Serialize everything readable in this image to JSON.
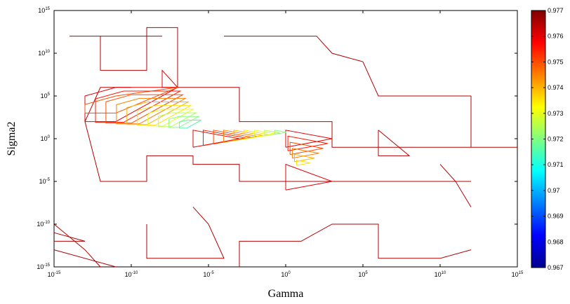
{
  "chart_data": {
    "type": "contour",
    "title": "",
    "xlabel": "Gamma",
    "ylabel": "Sigma2",
    "x_scale": "log",
    "y_scale": "log",
    "xlim": [
      1e-15,
      1000000000000000.0
    ],
    "ylim": [
      1e-15,
      1000000000000000.0
    ],
    "x_ticks": [
      {
        "base": "10",
        "exp": "-15",
        "value": 1e-15
      },
      {
        "base": "10",
        "exp": "-10",
        "value": 1e-10
      },
      {
        "base": "10",
        "exp": "-5",
        "value": 1e-05
      },
      {
        "base": "10",
        "exp": "0",
        "value": 1
      },
      {
        "base": "10",
        "exp": "5",
        "value": 100000.0
      },
      {
        "base": "10",
        "exp": "10",
        "value": 10000000000.0
      },
      {
        "base": "10",
        "exp": "15",
        "value": 1000000000000000.0
      }
    ],
    "y_ticks": [
      {
        "base": "10",
        "exp": "-15",
        "value": 1e-15
      },
      {
        "base": "10",
        "exp": "-10",
        "value": 1e-10
      },
      {
        "base": "10",
        "exp": "-5",
        "value": 1e-05
      },
      {
        "base": "10",
        "exp": "0",
        "value": 1
      },
      {
        "base": "10",
        "exp": "5",
        "value": 100000.0
      },
      {
        "base": "10",
        "exp": "10",
        "value": 10000000000.0
      },
      {
        "base": "10",
        "exp": "15",
        "value": 1000000000000000.0
      }
    ],
    "grid": false,
    "colormap": "jet",
    "colorbar": {
      "position": "right",
      "min": 0.967,
      "max": 0.977,
      "tick_labels": [
        "0.967",
        "0.968",
        "0.969",
        "0.97",
        "0.971",
        "0.972",
        "0.973",
        "0.974",
        "0.975",
        "0.976",
        "0.977"
      ]
    },
    "contours": [
      {
        "level": 0.9765,
        "points": [
          [
            1e-14,
            1000000000000.0
          ],
          [
            1e-12,
            1000000000000.0
          ],
          [
            1e-12,
            100000000.0
          ],
          [
            1e-09,
            100000000.0
          ],
          [
            1e-09,
            10000000000000.0
          ],
          [
            1e-07,
            10000000000000.0
          ],
          [
            1e-07,
            1000000.0
          ],
          [
            0.001,
            1000000.0
          ],
          [
            0.001,
            100.0
          ],
          [
            1000.0,
            100.0
          ],
          [
            1000.0,
            0.1
          ],
          [
            1000000000000000.0,
            0.1
          ]
        ]
      },
      {
        "level": 0.9765,
        "points": [
          [
            1e-12,
            1000000000000.0
          ],
          [
            1e-08,
            1000000000000.0
          ]
        ]
      },
      {
        "level": 0.9765,
        "points": [
          [
            0.0001,
            1000000000000.0
          ],
          [
            100.0,
            1000000000000.0
          ],
          [
            1000.0,
            10000000000.0
          ],
          [
            100000.0,
            1000000000.0
          ],
          [
            1000000.0,
            100000.0
          ],
          [
            1000000000000.0,
            100000.0
          ]
        ]
      },
      {
        "level": 0.9765,
        "points": [
          [
            1e-10,
            1000000.0
          ],
          [
            1e-12,
            1000000.0
          ],
          [
            1e-13,
            100.0
          ],
          [
            1e-12,
            1e-05
          ],
          [
            1e-09,
            1e-05
          ],
          [
            1e-09,
            0.01
          ],
          [
            1e-06,
            0.01
          ],
          [
            1e-06,
            0.001
          ],
          [
            0.001,
            0.001
          ],
          [
            0.001,
            1e-05
          ],
          [
            10.0,
            1e-05
          ],
          [
            1000000.0,
            1e-05
          ],
          [
            1000000000000.0,
            1e-05
          ]
        ]
      },
      {
        "level": 0.9765,
        "points": [
          [
            1e-09,
            1e-10
          ],
          [
            1e-09,
            1e-14
          ],
          [
            0.0001,
            1e-14
          ],
          [
            1e-05,
            1e-10
          ],
          [
            1e-06,
            1e-08
          ]
        ]
      },
      {
        "level": 0.9765,
        "points": [
          [
            0.001,
            1e-15
          ],
          [
            0.001,
            1e-12
          ],
          [
            10.0,
            1e-12
          ],
          [
            1000.0,
            1e-10
          ],
          [
            1000000.0,
            1e-10
          ],
          [
            1000000.0,
            1e-14
          ],
          [
            10000000000.0,
            1e-14
          ],
          [
            1000000000000.0,
            1e-13
          ]
        ]
      },
      {
        "level": 0.9765,
        "points": [
          [
            1000000000000.0,
            0.1
          ],
          [
            1000000000000.0,
            100000.0
          ]
        ]
      },
      {
        "level": 0.9765,
        "points": [
          [
            1000000.0,
            10.0
          ],
          [
            1000000.0,
            0.01
          ],
          [
            100000000.0,
            0.01
          ],
          [
            1000000.0,
            10.0
          ]
        ]
      },
      {
        "level": 0.9765,
        "points": [
          [
            10000000000.0,
            0.001
          ],
          [
            100000000000.0,
            1e-05
          ],
          [
            1000000000000.0,
            1e-08
          ]
        ]
      },
      {
        "level": 0.9765,
        "points": [
          [
            1e-15,
            1e-10
          ],
          [
            1e-13,
            1e-13
          ],
          [
            1e-12,
            1e-15
          ]
        ]
      },
      {
        "level": 0.9765,
        "points": [
          [
            1e-15,
            1e-13
          ],
          [
            1e-11,
            1e-15
          ]
        ]
      },
      {
        "level": 0.9765,
        "points": [
          [
            1e-15,
            1e-11
          ],
          [
            1e-13,
            1e-12
          ]
        ]
      },
      {
        "level": 0.9765,
        "points": [
          [
            1e-15,
            1e-12
          ],
          [
            1e-13,
            1e-12
          ]
        ]
      },
      {
        "level": 0.976,
        "points": [
          [
            1e-08,
            1000000.0
          ],
          [
            1e-07,
            1000000.0
          ],
          [
            1e-08,
            100000000.0
          ],
          [
            1e-08,
            1000000.0
          ]
        ]
      },
      {
        "level": 0.976,
        "points": [
          [
            1e-11,
            100.0
          ],
          [
            1e-13,
            100.0
          ],
          [
            1e-13,
            100000.0
          ],
          [
            1e-11,
            1000000.0
          ],
          [
            1e-07,
            1000000.0
          ],
          [
            1e-11,
            100.0
          ]
        ]
      },
      {
        "level": 0.975,
        "points": [
          [
            1e-11,
            1000.0
          ],
          [
            1e-13,
            1000.0
          ],
          [
            1e-13,
            10000.0
          ],
          [
            1e-11,
            100000.0
          ],
          [
            1e-07,
            1000000.0
          ],
          [
            1e-11,
            1000.0
          ]
        ]
      },
      {
        "level": 0.976,
        "points": [
          [
            1e-06,
            0.1
          ],
          [
            1e-06,
            10.0
          ],
          [
            0.001,
            1.0
          ],
          [
            1e-06,
            0.1
          ]
        ]
      },
      {
        "level": 0.976,
        "points": [
          [
            1.0,
            0.1
          ],
          [
            1.0,
            10.0
          ],
          [
            1000.0,
            1.0
          ],
          [
            1.0,
            0.1
          ]
        ]
      },
      {
        "level": 0.976,
        "points": [
          [
            1.0,
            1e-06
          ],
          [
            1.0,
            0.001
          ],
          [
            1000.0,
            1e-05
          ],
          [
            1.0,
            1e-06
          ]
        ]
      }
    ],
    "peaks": [
      {
        "x": 3.2e-09,
        "y": 32000000.0,
        "max": 0.977
      },
      {
        "x": 1e-05,
        "y": 10.0,
        "max": 0.9715
      },
      {
        "x": 10.0,
        "y": 10.0,
        "max": 0.972
      },
      {
        "x": 10.0,
        "y": 0.0001,
        "max": 0.9735
      }
    ]
  }
}
